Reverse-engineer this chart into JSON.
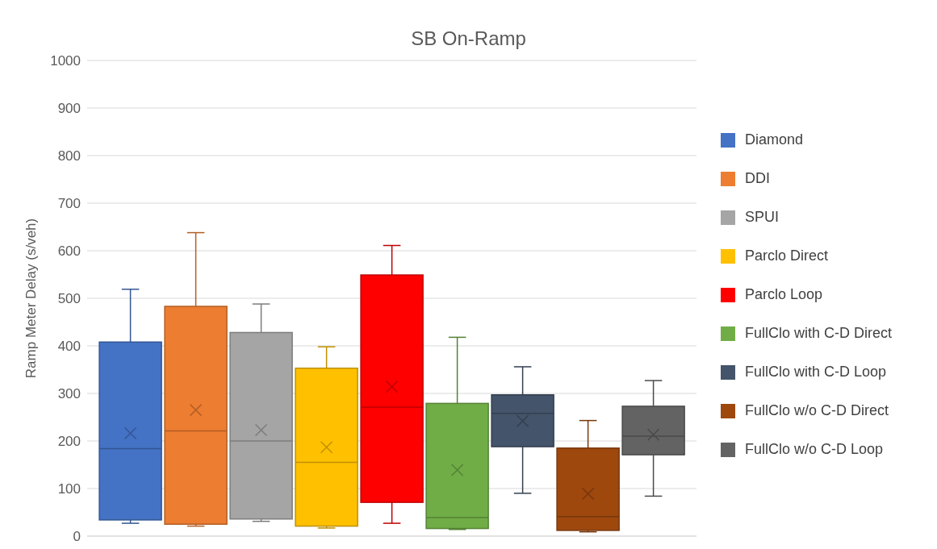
{
  "chart_data": {
    "type": "box",
    "title": "SB On-Ramp",
    "ylabel": "Ramp Meter Delay (s/veh)",
    "categories": [
      null
    ],
    "ylim": [
      0,
      1000
    ],
    "yticks": [
      0,
      100,
      200,
      300,
      400,
      500,
      600,
      700,
      800,
      900,
      1000
    ],
    "grid": "y",
    "legend": "right",
    "series": [
      {
        "name": "Diamond",
        "color": "#4472c4",
        "boxes": [
          {
            "low": 27,
            "q1": 34,
            "median": 184,
            "q3": 408,
            "high": 519,
            "mean": 216
          }
        ]
      },
      {
        "name": "DDI",
        "color": "#ed7d31",
        "boxes": [
          {
            "low": 21,
            "q1": 25,
            "median": 221,
            "q3": 483,
            "high": 638,
            "mean": 265
          }
        ]
      },
      {
        "name": "SPUI",
        "color": "#a5a5a5",
        "boxes": [
          {
            "low": 31,
            "q1": 36,
            "median": 200,
            "q3": 428,
            "high": 488,
            "mean": 223
          }
        ]
      },
      {
        "name": "Parclo Direct",
        "color": "#ffc000",
        "boxes": [
          {
            "low": 17,
            "q1": 21,
            "median": 155,
            "q3": 353,
            "high": 398,
            "mean": 187
          }
        ]
      },
      {
        "name": "Parclo Loop",
        "color": "#ff0000",
        "boxes": [
          {
            "low": 27,
            "q1": 71,
            "median": 271,
            "q3": 549,
            "high": 611,
            "mean": 314
          }
        ]
      },
      {
        "name": "FullClo with C-D Direct",
        "color": "#70ad47",
        "boxes": [
          {
            "low": 14,
            "q1": 16,
            "median": 39,
            "q3": 279,
            "high": 418,
            "mean": 139
          }
        ]
      },
      {
        "name": "FullClo with C-D Loop",
        "color": "#44546a",
        "boxes": [
          {
            "low": 90,
            "q1": 188,
            "median": 258,
            "q3": 297,
            "high": 356,
            "mean": 242
          }
        ]
      },
      {
        "name": "FullClo w/o C-D Direct",
        "color": "#9e480e",
        "boxes": [
          {
            "low": 9,
            "q1": 12,
            "median": 41,
            "q3": 185,
            "high": 243,
            "mean": 89
          }
        ]
      },
      {
        "name": "FullClo w/o C-D Loop",
        "color": "#636363",
        "boxes": [
          {
            "low": 84,
            "q1": 171,
            "median": 210,
            "q3": 273,
            "high": 327,
            "mean": 213
          }
        ]
      }
    ]
  }
}
